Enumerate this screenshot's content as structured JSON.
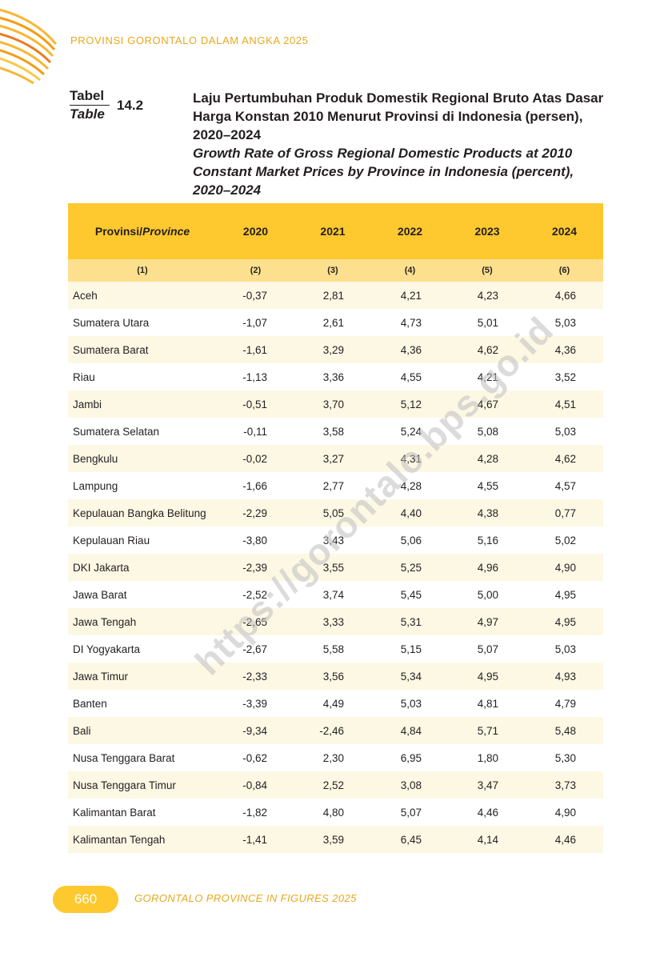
{
  "running_header": "PROVINSI GORONTALO DALAM ANGKA 2025",
  "table_label": {
    "id": "Tabel",
    "en": "Table",
    "number": "14.2"
  },
  "title": {
    "id": "Laju Pertumbuhan Produk Domestik Regional Bruto Atas Dasar Harga Konstan 2010 Menurut Provinsi di Indonesia (persen), 2020–2024",
    "en": "Growth Rate of Gross Regional Domestic Products at 2010 Constant Market Prices by Province in Indonesia (percent), 2020–2024"
  },
  "table": {
    "headers": {
      "province_id": "Provinsi/",
      "province_en": "Province",
      "years": [
        "2020",
        "2021",
        "2022",
        "2023",
        "2024"
      ]
    },
    "column_numbers": [
      "(1)",
      "(2)",
      "(3)",
      "(4)",
      "(5)",
      "(6)"
    ],
    "rows": [
      {
        "province": "Aceh",
        "values": [
          "-0,37",
          "2,81",
          "4,21",
          "4,23",
          "4,66"
        ]
      },
      {
        "province": "Sumatera Utara",
        "values": [
          "-1,07",
          "2,61",
          "4,73",
          "5,01",
          "5,03"
        ]
      },
      {
        "province": "Sumatera Barat",
        "values": [
          "-1,61",
          "3,29",
          "4,36",
          "4,62",
          "4,36"
        ]
      },
      {
        "province": "Riau",
        "values": [
          "-1,13",
          "3,36",
          "4,55",
          "4,21",
          "3,52"
        ]
      },
      {
        "province": "Jambi",
        "values": [
          "-0,51",
          "3,70",
          "5,12",
          "4,67",
          "4,51"
        ]
      },
      {
        "province": "Sumatera Selatan",
        "values": [
          "-0,11",
          "3,58",
          "5,24",
          "5,08",
          "5,03"
        ]
      },
      {
        "province": "Bengkulu",
        "values": [
          "-0,02",
          "3,27",
          "4,31",
          "4,28",
          "4,62"
        ]
      },
      {
        "province": "Lampung",
        "values": [
          "-1,66",
          "2,77",
          "4,28",
          "4,55",
          "4,57"
        ]
      },
      {
        "province": "Kepulauan Bangka Belitung",
        "values": [
          "-2,29",
          "5,05",
          "4,40",
          "4,38",
          "0,77"
        ]
      },
      {
        "province": "Kepulauan Riau",
        "values": [
          "-3,80",
          "3,43",
          "5,06",
          "5,16",
          "5,02"
        ]
      },
      {
        "province": "DKI Jakarta",
        "values": [
          "-2,39",
          "3,55",
          "5,25",
          "4,96",
          "4,90"
        ]
      },
      {
        "province": "Jawa Barat",
        "values": [
          "-2,52",
          "3,74",
          "5,45",
          "5,00",
          "4,95"
        ]
      },
      {
        "province": "Jawa Tengah",
        "values": [
          "-2,65",
          "3,33",
          "5,31",
          "4,97",
          "4,95"
        ]
      },
      {
        "province": "DI Yogyakarta",
        "values": [
          "-2,67",
          "5,58",
          "5,15",
          "5,07",
          "5,03"
        ]
      },
      {
        "province": "Jawa Timur",
        "values": [
          "-2,33",
          "3,56",
          "5,34",
          "4,95",
          "4,93"
        ]
      },
      {
        "province": "Banten",
        "values": [
          "-3,39",
          "4,49",
          "5,03",
          "4,81",
          "4,79"
        ]
      },
      {
        "province": "Bali",
        "values": [
          "-9,34",
          "-2,46",
          "4,84",
          "5,71",
          "5,48"
        ]
      },
      {
        "province": "Nusa Tenggara Barat",
        "values": [
          "-0,62",
          "2,30",
          "6,95",
          "1,80",
          "5,30"
        ]
      },
      {
        "province": "Nusa Tenggara Timur",
        "values": [
          "-0,84",
          "2,52",
          "3,08",
          "3,47",
          "3,73"
        ]
      },
      {
        "province": "Kalimantan Barat",
        "values": [
          "-1,82",
          "4,80",
          "5,07",
          "4,46",
          "4,90"
        ]
      },
      {
        "province": "Kalimantan Tengah",
        "values": [
          "-1,41",
          "3,59",
          "6,45",
          "4,14",
          "4,46"
        ]
      }
    ]
  },
  "watermark": "https://gorontalo.bps.go.id",
  "footer": {
    "page_number": "660",
    "text": "GORONTALO PROVINCE IN FIGURES 2025"
  },
  "colors": {
    "accent": "#fec82f",
    "header_text": "#e8a81c",
    "column_number_band": "#fde08e",
    "row_stripe": "#fdf8e4"
  }
}
